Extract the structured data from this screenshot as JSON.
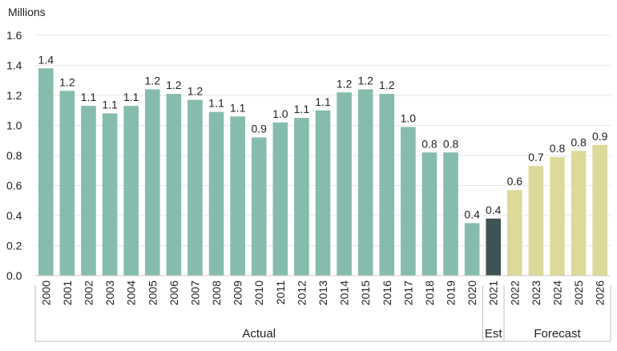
{
  "chart_data": {
    "type": "bar",
    "unit_label": "Millions",
    "ylim": [
      0,
      1.6
    ],
    "yticks": [
      "0.0",
      "0.2",
      "0.4",
      "0.6",
      "0.8",
      "1.0",
      "1.2",
      "1.4",
      "1.6"
    ],
    "grid": true,
    "categories": [
      "2000",
      "2001",
      "2002",
      "2003",
      "2004",
      "2005",
      "2006",
      "2007",
      "2008",
      "2009",
      "2010",
      "2011",
      "2012",
      "2013",
      "2014",
      "2015",
      "2016",
      "2017",
      "2018",
      "2019",
      "2020",
      "2021",
      "2022",
      "2023",
      "2024",
      "2025",
      "2026"
    ],
    "values": [
      1.38,
      1.23,
      1.13,
      1.08,
      1.13,
      1.24,
      1.21,
      1.17,
      1.09,
      1.06,
      0.92,
      1.02,
      1.05,
      1.1,
      1.22,
      1.24,
      1.21,
      0.99,
      0.82,
      0.82,
      0.35,
      0.38,
      0.57,
      0.73,
      0.79,
      0.83,
      0.87
    ],
    "value_labels": [
      "1.4",
      "1.2",
      "1.1",
      "1.1",
      "1.1",
      "1.2",
      "1.2",
      "1.2",
      "1.1",
      "1.1",
      "0.9",
      "1.0",
      "1.1",
      "1.1",
      "1.2",
      "1.2",
      "1.2",
      "1.0",
      "0.8",
      "0.8",
      "0.4",
      "0.4",
      "0.6",
      "0.7",
      "0.8",
      "0.8",
      "0.9"
    ],
    "groups": [
      {
        "label": "Actual",
        "start": 0,
        "end": 20,
        "color": "#86bcad"
      },
      {
        "label": "Est",
        "start": 21,
        "end": 21,
        "color": "#3f5452"
      },
      {
        "label": "Forecast",
        "start": 22,
        "end": 26,
        "color": "#dcd99b"
      }
    ]
  }
}
